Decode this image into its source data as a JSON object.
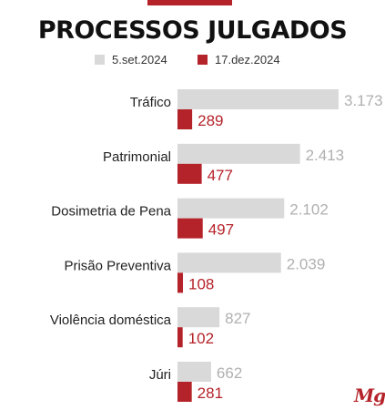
{
  "title": "PROCESSOS JULGADOS",
  "brand": {
    "logo_text": "Mg",
    "accent": "#b5232a"
  },
  "chart_data": {
    "type": "bar",
    "orientation": "horizontal",
    "title": "PROCESSOS JULGADOS",
    "categories": [
      "Tráfico",
      "Patrimonial",
      "Dosimetria de Pena",
      "Prisão Preventiva",
      "Violência doméstica",
      "Júri"
    ],
    "series": [
      {
        "name": "5.set.2024",
        "color": "#d9d9d9",
        "values": [
          3173,
          2413,
          2102,
          2039,
          827,
          662
        ],
        "labels": [
          "3.173",
          "2.413",
          "2.102",
          "2.039",
          "827",
          "662"
        ]
      },
      {
        "name": "17.dez.2024",
        "color": "#b5232a",
        "values": [
          289,
          477,
          497,
          108,
          102,
          281
        ],
        "labels": [
          "289",
          "477",
          "497",
          "108",
          "102",
          "281"
        ]
      }
    ],
    "xlim": [
      0,
      3173
    ],
    "grid": false,
    "legend_position": "top"
  }
}
